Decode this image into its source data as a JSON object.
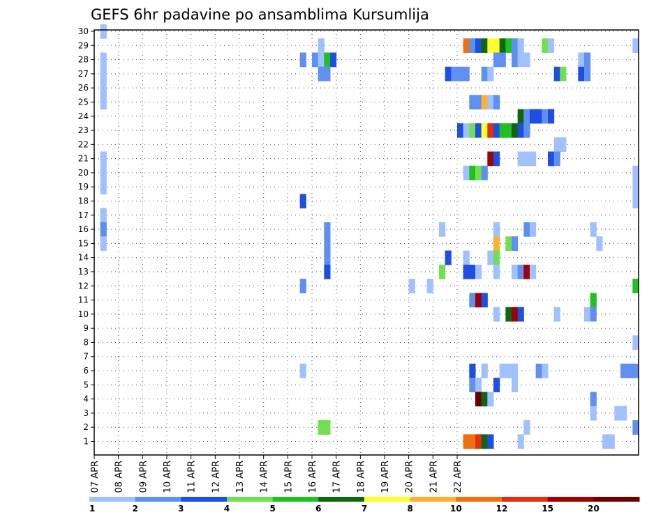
{
  "chart_data": {
    "type": "heatmap",
    "title": "GEFS 6hr padavine po ansamblima Kursumlija",
    "xlabel": "",
    "ylabel": "",
    "x_ticks": [
      "07 APR",
      "08 APR",
      "09 APR",
      "10 APR",
      "11 APR",
      "12 APR",
      "13 APR",
      "14 APR",
      "15 APR",
      "16 APR",
      "17 APR",
      "18 APR",
      "19 APR",
      "20 APR",
      "21 APR",
      "22 APR"
    ],
    "y_ticks": [
      "1",
      "2",
      "3",
      "4",
      "5",
      "6",
      "7",
      "8",
      "9",
      "10",
      "11",
      "12",
      "13",
      "14",
      "15",
      "16",
      "17",
      "18",
      "19",
      "20",
      "21",
      "22",
      "23",
      "24",
      "25",
      "26",
      "27",
      "28",
      "29",
      "30"
    ],
    "x_unit": "6-hour step (4 per day, starting 07 APR 00z)",
    "ylim": [
      0,
      30
    ],
    "grid": true,
    "colorbar": {
      "labels": [
        "1",
        "2",
        "3",
        "4",
        "5",
        "6",
        "7",
        "8",
        "10",
        "12",
        "15",
        "20"
      ],
      "colors": [
        "#a0c0ff",
        "#5f8ff0",
        "#1e4fe0",
        "#70e050",
        "#20c020",
        "#106610",
        "#ffff30",
        "#ffb030",
        "#f07010",
        "#e03010",
        "#a00000",
        "#6a0000"
      ]
    },
    "cells": [
      {
        "member": 30,
        "x": 1,
        "v": 1
      },
      {
        "member": 29,
        "x": 37,
        "v": 1
      },
      {
        "member": 29,
        "x": 61,
        "v": 10
      },
      {
        "member": 29,
        "x": 62,
        "v": 2
      },
      {
        "member": 29,
        "x": 63,
        "v": 3
      },
      {
        "member": 29,
        "x": 64,
        "v": 6
      },
      {
        "member": 29,
        "x": 65,
        "v": 7
      },
      {
        "member": 29,
        "x": 66,
        "v": 7
      },
      {
        "member": 29,
        "x": 67,
        "v": 6
      },
      {
        "member": 29,
        "x": 68,
        "v": 5
      },
      {
        "member": 29,
        "x": 69,
        "v": 2
      },
      {
        "member": 29,
        "x": 70,
        "v": 1
      },
      {
        "member": 29,
        "x": 74,
        "v": 4
      },
      {
        "member": 29,
        "x": 75,
        "v": 1
      },
      {
        "member": 29,
        "x": 89,
        "v": 1
      },
      {
        "member": 28,
        "x": 1,
        "v": 1
      },
      {
        "member": 28,
        "x": 34,
        "v": 2
      },
      {
        "member": 28,
        "x": 36,
        "v": 2
      },
      {
        "member": 28,
        "x": 37,
        "v": 1
      },
      {
        "member": 28,
        "x": 38,
        "v": 5
      },
      {
        "member": 28,
        "x": 39,
        "v": 3
      },
      {
        "member": 28,
        "x": 66,
        "v": 2
      },
      {
        "member": 28,
        "x": 67,
        "v": 2
      },
      {
        "member": 28,
        "x": 69,
        "v": 2
      },
      {
        "member": 28,
        "x": 70,
        "v": 1
      },
      {
        "member": 28,
        "x": 71,
        "v": 1
      },
      {
        "member": 28,
        "x": 80,
        "v": 1
      },
      {
        "member": 28,
        "x": 81,
        "v": 2
      },
      {
        "member": 27,
        "x": 1,
        "v": 1
      },
      {
        "member": 27,
        "x": 37,
        "v": 2
      },
      {
        "member": 27,
        "x": 38,
        "v": 2
      },
      {
        "member": 27,
        "x": 58,
        "v": 3
      },
      {
        "member": 27,
        "x": 59,
        "v": 2
      },
      {
        "member": 27,
        "x": 60,
        "v": 2
      },
      {
        "member": 27,
        "x": 61,
        "v": 2
      },
      {
        "member": 27,
        "x": 64,
        "v": 2
      },
      {
        "member": 27,
        "x": 65,
        "v": 1
      },
      {
        "member": 27,
        "x": 76,
        "v": 3
      },
      {
        "member": 27,
        "x": 77,
        "v": 4
      },
      {
        "member": 27,
        "x": 80,
        "v": 3
      },
      {
        "member": 27,
        "x": 81,
        "v": 2
      },
      {
        "member": 26,
        "x": 1,
        "v": 1
      },
      {
        "member": 25,
        "x": 1,
        "v": 1
      },
      {
        "member": 25,
        "x": 62,
        "v": 2
      },
      {
        "member": 25,
        "x": 63,
        "v": 2
      },
      {
        "member": 25,
        "x": 64,
        "v": 9
      },
      {
        "member": 25,
        "x": 65,
        "v": 1
      },
      {
        "member": 25,
        "x": 66,
        "v": 2
      },
      {
        "member": 24,
        "x": 70,
        "v": 6
      },
      {
        "member": 24,
        "x": 71,
        "v": 2
      },
      {
        "member": 24,
        "x": 72,
        "v": 3
      },
      {
        "member": 24,
        "x": 73,
        "v": 3
      },
      {
        "member": 24,
        "x": 74,
        "v": 2
      },
      {
        "member": 24,
        "x": 75,
        "v": 3
      },
      {
        "member": 23,
        "x": 60,
        "v": 3
      },
      {
        "member": 23,
        "x": 61,
        "v": 1
      },
      {
        "member": 23,
        "x": 62,
        "v": 4
      },
      {
        "member": 23,
        "x": 63,
        "v": 3
      },
      {
        "member": 23,
        "x": 64,
        "v": 7
      },
      {
        "member": 23,
        "x": 65,
        "v": 12
      },
      {
        "member": 23,
        "x": 66,
        "v": 3
      },
      {
        "member": 23,
        "x": 67,
        "v": 5
      },
      {
        "member": 23,
        "x": 68,
        "v": 5
      },
      {
        "member": 23,
        "x": 69,
        "v": 6
      },
      {
        "member": 23,
        "x": 70,
        "v": 3
      },
      {
        "member": 23,
        "x": 71,
        "v": 2
      },
      {
        "member": 22,
        "x": 76,
        "v": 1
      },
      {
        "member": 22,
        "x": 77,
        "v": 1
      },
      {
        "member": 21,
        "x": 1,
        "v": 1
      },
      {
        "member": 21,
        "x": 65,
        "v": 15
      },
      {
        "member": 21,
        "x": 66,
        "v": 3
      },
      {
        "member": 21,
        "x": 70,
        "v": 1
      },
      {
        "member": 21,
        "x": 71,
        "v": 1
      },
      {
        "member": 21,
        "x": 72,
        "v": 1
      },
      {
        "member": 21,
        "x": 75,
        "v": 3
      },
      {
        "member": 21,
        "x": 76,
        "v": 2
      },
      {
        "member": 20,
        "x": 1,
        "v": 1
      },
      {
        "member": 20,
        "x": 61,
        "v": 1
      },
      {
        "member": 20,
        "x": 62,
        "v": 5
      },
      {
        "member": 20,
        "x": 63,
        "v": 4
      },
      {
        "member": 20,
        "x": 64,
        "v": 2
      },
      {
        "member": 20,
        "x": 89,
        "v": 1
      },
      {
        "member": 19,
        "x": 1,
        "v": 1
      },
      {
        "member": 19,
        "x": 89,
        "v": 1
      },
      {
        "member": 18,
        "x": 34,
        "v": 3
      },
      {
        "member": 18,
        "x": 89,
        "v": 1
      },
      {
        "member": 17,
        "x": 1,
        "v": 1
      },
      {
        "member": 16,
        "x": 1,
        "v": 2
      },
      {
        "member": 16,
        "x": 38,
        "v": 2
      },
      {
        "member": 16,
        "x": 57,
        "v": 1
      },
      {
        "member": 16,
        "x": 66,
        "v": 1
      },
      {
        "member": 16,
        "x": 71,
        "v": 2
      },
      {
        "member": 16,
        "x": 72,
        "v": 1
      },
      {
        "member": 16,
        "x": 82,
        "v": 1
      },
      {
        "member": 15,
        "x": 1,
        "v": 1
      },
      {
        "member": 15,
        "x": 38,
        "v": 2
      },
      {
        "member": 15,
        "x": 66,
        "v": 8
      },
      {
        "member": 15,
        "x": 68,
        "v": 4
      },
      {
        "member": 15,
        "x": 69,
        "v": 2
      },
      {
        "member": 15,
        "x": 83,
        "v": 1
      },
      {
        "member": 14,
        "x": 38,
        "v": 2
      },
      {
        "member": 14,
        "x": 58,
        "v": 3
      },
      {
        "member": 14,
        "x": 61,
        "v": 1
      },
      {
        "member": 14,
        "x": 65,
        "v": 1
      },
      {
        "member": 14,
        "x": 66,
        "v": 4
      },
      {
        "member": 13,
        "x": 38,
        "v": 3
      },
      {
        "member": 13,
        "x": 57,
        "v": 4
      },
      {
        "member": 13,
        "x": 61,
        "v": 3
      },
      {
        "member": 13,
        "x": 62,
        "v": 3
      },
      {
        "member": 13,
        "x": 63,
        "v": 1
      },
      {
        "member": 13,
        "x": 66,
        "v": 1
      },
      {
        "member": 13,
        "x": 69,
        "v": 1
      },
      {
        "member": 13,
        "x": 70,
        "v": 2
      },
      {
        "member": 13,
        "x": 71,
        "v": 15
      },
      {
        "member": 13,
        "x": 72,
        "v": 1
      },
      {
        "member": 12,
        "x": 34,
        "v": 2
      },
      {
        "member": 12,
        "x": 52,
        "v": 1
      },
      {
        "member": 12,
        "x": 55,
        "v": 1
      },
      {
        "member": 12,
        "x": 89,
        "v": 5
      },
      {
        "member": 11,
        "x": 62,
        "v": 2
      },
      {
        "member": 11,
        "x": 63,
        "v": 15
      },
      {
        "member": 11,
        "x": 64,
        "v": 3
      },
      {
        "member": 11,
        "x": 82,
        "v": 5
      },
      {
        "member": 10,
        "x": 66,
        "v": 1
      },
      {
        "member": 10,
        "x": 68,
        "v": 6
      },
      {
        "member": 10,
        "x": 69,
        "v": 15
      },
      {
        "member": 10,
        "x": 70,
        "v": 3
      },
      {
        "member": 10,
        "x": 76,
        "v": 1
      },
      {
        "member": 10,
        "x": 81,
        "v": 1
      },
      {
        "member": 10,
        "x": 82,
        "v": 2
      },
      {
        "member": 8,
        "x": 89,
        "v": 1
      },
      {
        "member": 6,
        "x": 34,
        "v": 1
      },
      {
        "member": 6,
        "x": 62,
        "v": 3
      },
      {
        "member": 6,
        "x": 64,
        "v": 1
      },
      {
        "member": 6,
        "x": 67,
        "v": 1
      },
      {
        "member": 6,
        "x": 68,
        "v": 1
      },
      {
        "member": 6,
        "x": 69,
        "v": 1
      },
      {
        "member": 6,
        "x": 73,
        "v": 2
      },
      {
        "member": 6,
        "x": 74,
        "v": 1
      },
      {
        "member": 6,
        "x": 87,
        "v": 2
      },
      {
        "member": 6,
        "x": 88,
        "v": 2
      },
      {
        "member": 6,
        "x": 89,
        "v": 2
      },
      {
        "member": 5,
        "x": 62,
        "v": 2
      },
      {
        "member": 5,
        "x": 63,
        "v": 1
      },
      {
        "member": 5,
        "x": 66,
        "v": 3
      },
      {
        "member": 5,
        "x": 69,
        "v": 1
      },
      {
        "member": 4,
        "x": 63,
        "v": 20
      },
      {
        "member": 4,
        "x": 64,
        "v": 6
      },
      {
        "member": 4,
        "x": 65,
        "v": 1
      },
      {
        "member": 4,
        "x": 82,
        "v": 2
      },
      {
        "member": 3,
        "x": 82,
        "v": 1
      },
      {
        "member": 3,
        "x": 86,
        "v": 1
      },
      {
        "member": 3,
        "x": 87,
        "v": 1
      },
      {
        "member": 2,
        "x": 37,
        "v": 4
      },
      {
        "member": 2,
        "x": 38,
        "v": 4
      },
      {
        "member": 2,
        "x": 71,
        "v": 1
      },
      {
        "member": 2,
        "x": 89,
        "v": 2
      },
      {
        "member": 1,
        "x": 61,
        "v": 10
      },
      {
        "member": 1,
        "x": 62,
        "v": 10
      },
      {
        "member": 1,
        "x": 63,
        "v": 12
      },
      {
        "member": 1,
        "x": 64,
        "v": 6
      },
      {
        "member": 1,
        "x": 65,
        "v": 3
      },
      {
        "member": 1,
        "x": 70,
        "v": 1
      },
      {
        "member": 1,
        "x": 84,
        "v": 1
      },
      {
        "member": 1,
        "x": 85,
        "v": 1
      }
    ]
  }
}
